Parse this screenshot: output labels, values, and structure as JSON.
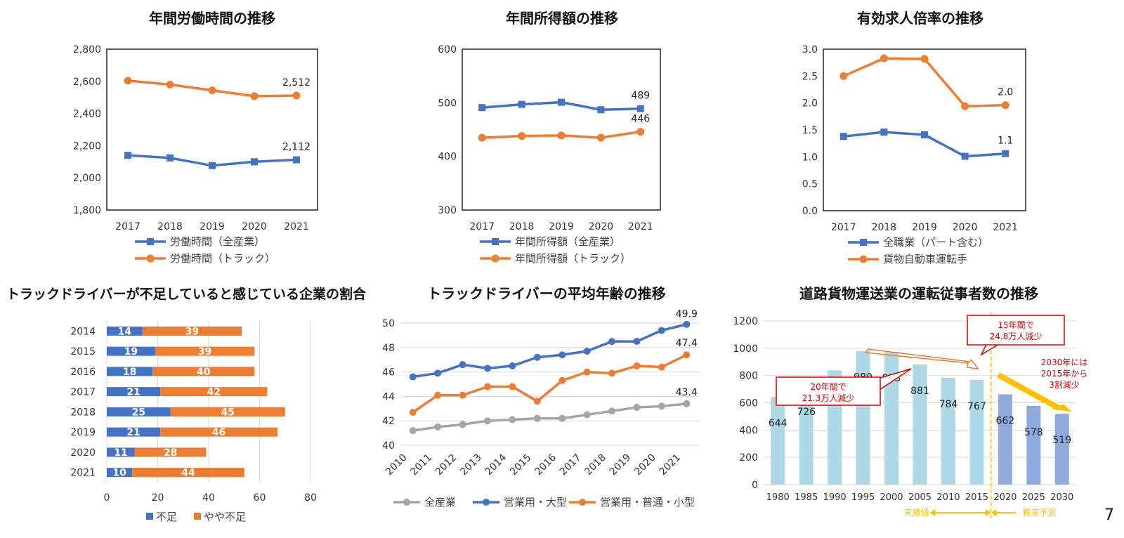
{
  "page_number": "7",
  "colors": {
    "blue": "#4472C4",
    "orange": "#ED7D31",
    "gray": "#A5A5A5",
    "light_blue": "#ADD8E6",
    "steel_blue": "#8FAADC",
    "red": "#E00000",
    "gold": "#FFC000"
  },
  "chart_data": [
    {
      "type": "line",
      "title": "年間労働時間の推移",
      "x": [
        "2017",
        "2018",
        "2019",
        "2020",
        "2021"
      ],
      "ylim": [
        1800,
        2800
      ],
      "yticks": [
        "1,800",
        "2,000",
        "2,200",
        "2,400",
        "2,600",
        "2,800"
      ],
      "series": [
        {
          "name": "労働時間（全産業）",
          "values": [
            2140,
            2124,
            2076,
            2100,
            2112
          ],
          "end_label": "2,112"
        },
        {
          "name": "労働時間（トラック）",
          "values": [
            2604,
            2580,
            2544,
            2508,
            2512
          ],
          "end_label": "2,512"
        }
      ],
      "legend": "bottom"
    },
    {
      "type": "line",
      "title": "年間所得額の推移",
      "x": [
        "2017",
        "2018",
        "2019",
        "2020",
        "2021"
      ],
      "ylim": [
        300,
        600
      ],
      "yticks": [
        "300",
        "400",
        "500",
        "600"
      ],
      "series": [
        {
          "name": "年間所得額（全産業）",
          "values": [
            491,
            497,
            501,
            487,
            489
          ],
          "end_label": "489"
        },
        {
          "name": "年間所得額（トラック）",
          "values": [
            435,
            438,
            439,
            435,
            446
          ],
          "end_label": "446"
        }
      ],
      "legend": "bottom"
    },
    {
      "type": "line",
      "title": "有効求人倍率の推移",
      "x": [
        "2017",
        "2018",
        "2019",
        "2020",
        "2021"
      ],
      "ylim": [
        0,
        3
      ],
      "yticks": [
        "0.0",
        "0.5",
        "1.0",
        "1.5",
        "2.0",
        "2.5",
        "3.0"
      ],
      "series": [
        {
          "name": "全職業（パート含む）",
          "values": [
            1.38,
            1.46,
            1.41,
            1.01,
            1.06
          ],
          "end_label": "1.1"
        },
        {
          "name": "貨物自動車運転手",
          "values": [
            2.5,
            2.83,
            2.82,
            1.94,
            1.96
          ],
          "end_label": "2.0"
        }
      ],
      "legend": "bottom"
    },
    {
      "type": "bar",
      "orientation": "horizontal-stacked",
      "title": "トラックドライバーが不足していると感じている企業の割合",
      "categories": [
        "2014",
        "2015",
        "2016",
        "2017",
        "2018",
        "2019",
        "2020",
        "2021"
      ],
      "xlim": [
        0,
        80
      ],
      "xticks": [
        "0",
        "20",
        "40",
        "60",
        "80"
      ],
      "series": [
        {
          "name": "不足",
          "values": [
            14,
            19,
            18,
            21,
            25,
            21,
            11,
            10
          ]
        },
        {
          "name": "やや不足",
          "values": [
            39,
            39,
            40,
            42,
            45,
            46,
            28,
            44
          ]
        }
      ],
      "legend": "bottom"
    },
    {
      "type": "line",
      "title": "トラックドライバーの平均年齢の推移",
      "x": [
        "2010",
        "2011",
        "2012",
        "2013",
        "2014",
        "2015",
        "2016",
        "2017",
        "2018",
        "2019",
        "2020",
        "2021"
      ],
      "ylim": [
        40,
        50
      ],
      "yticks": [
        "40",
        "42",
        "44",
        "46",
        "48",
        "50"
      ],
      "series": [
        {
          "name": "全産業",
          "values": [
            41.2,
            41.5,
            41.7,
            42.0,
            42.1,
            42.2,
            42.2,
            42.5,
            42.8,
            43.1,
            43.2,
            43.4
          ],
          "end_label": "43.4"
        },
        {
          "name": "営業用・大型",
          "values": [
            45.6,
            45.9,
            46.6,
            46.3,
            46.5,
            47.2,
            47.4,
            47.7,
            48.5,
            48.5,
            49.4,
            49.9
          ],
          "end_label": "49.9"
        },
        {
          "name": "営業用・普通・小型",
          "values": [
            42.7,
            44.1,
            44.1,
            44.8,
            44.8,
            43.6,
            45.3,
            46.0,
            45.9,
            46.5,
            46.4,
            47.4
          ],
          "end_label": "47.4"
        }
      ],
      "legend": "bottom"
    },
    {
      "type": "bar",
      "title": "道路貨物運送業の運転従事者数の推移",
      "categories": [
        "1980",
        "1985",
        "1990",
        "1995",
        "2000",
        "2005",
        "2010",
        "2015",
        "2020",
        "2025",
        "2030"
      ],
      "values": [
        644,
        726,
        838,
        980,
        973,
        881,
        784,
        767,
        662,
        578,
        519
      ],
      "ylim": [
        0,
        1200
      ],
      "yticks": [
        "0",
        "200",
        "400",
        "600",
        "800",
        "1000",
        "1200"
      ],
      "actual_label": "実績値",
      "forecast_label": "将来予測",
      "callouts": [
        "20年間で\n21.3万人減少",
        "15年間で\n24.8万人減少",
        "2030年には\n2015年から\n3割減少"
      ]
    }
  ]
}
